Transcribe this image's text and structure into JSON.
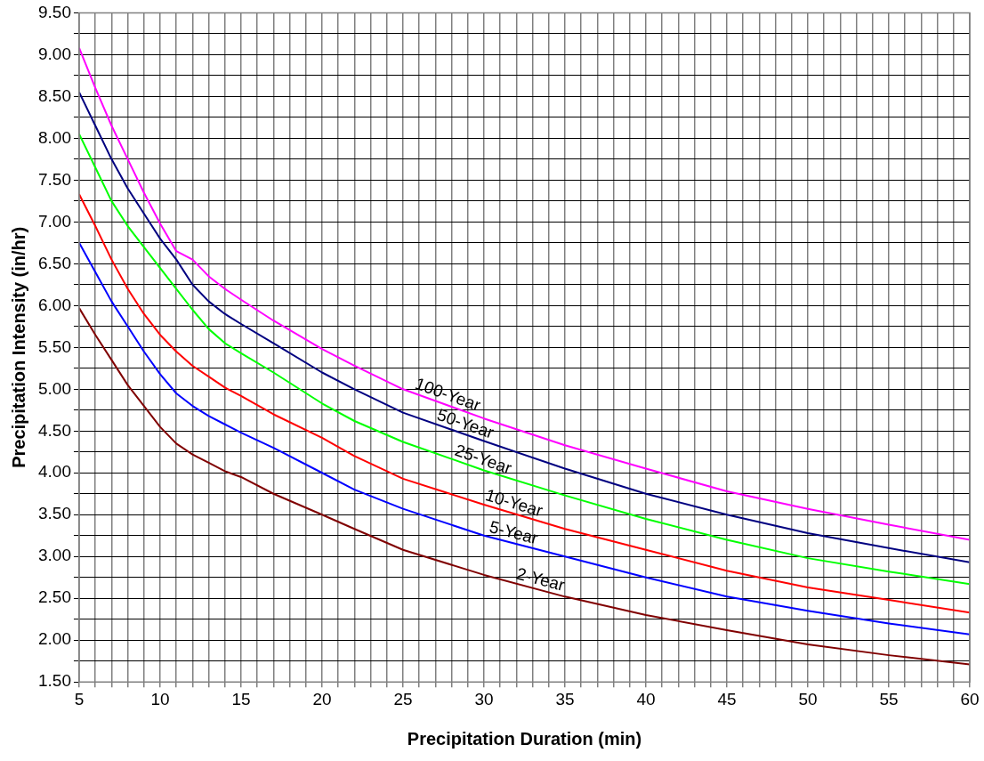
{
  "chart_data": {
    "type": "line",
    "xlabel": "Precipitation Duration (min)",
    "ylabel": "Precipitation Intensity (in/hr)",
    "x": [
      5,
      6,
      7,
      8,
      9,
      10,
      11,
      12,
      13,
      14,
      15,
      17,
      20,
      22,
      25,
      30,
      35,
      40,
      45,
      50,
      55,
      60
    ],
    "series": [
      {
        "name": "100-Year",
        "color": "#ff00ff",
        "values": [
          9.08,
          8.6,
          8.15,
          7.75,
          7.35,
          6.98,
          6.65,
          6.55,
          6.35,
          6.2,
          6.07,
          5.82,
          5.48,
          5.28,
          5.0,
          4.65,
          4.33,
          4.05,
          3.78,
          3.57,
          3.38,
          3.2
        ]
      },
      {
        "name": "50-Year",
        "color": "#000080",
        "values": [
          8.55,
          8.15,
          7.75,
          7.4,
          7.1,
          6.8,
          6.55,
          6.25,
          6.05,
          5.9,
          5.78,
          5.55,
          5.2,
          5.0,
          4.72,
          4.38,
          4.05,
          3.75,
          3.5,
          3.28,
          3.1,
          2.93
        ]
      },
      {
        "name": "25-Year",
        "color": "#00ff00",
        "values": [
          8.05,
          7.65,
          7.25,
          6.95,
          6.7,
          6.45,
          6.2,
          5.95,
          5.72,
          5.55,
          5.43,
          5.2,
          4.83,
          4.62,
          4.37,
          4.03,
          3.73,
          3.45,
          3.2,
          2.98,
          2.82,
          2.67
        ]
      },
      {
        "name": "10-Year",
        "color": "#ff0000",
        "values": [
          7.33,
          6.95,
          6.55,
          6.2,
          5.9,
          5.65,
          5.45,
          5.28,
          5.15,
          5.02,
          4.92,
          4.7,
          4.42,
          4.2,
          3.93,
          3.62,
          3.33,
          3.08,
          2.83,
          2.63,
          2.48,
          2.33
        ]
      },
      {
        "name": "5-Year",
        "color": "#0000ff",
        "values": [
          6.75,
          6.4,
          6.05,
          5.75,
          5.45,
          5.18,
          4.95,
          4.8,
          4.68,
          4.58,
          4.48,
          4.3,
          4.0,
          3.8,
          3.57,
          3.25,
          3.0,
          2.75,
          2.52,
          2.35,
          2.2,
          2.07
        ]
      },
      {
        "name": "2-Year",
        "color": "#800000",
        "values": [
          5.97,
          5.65,
          5.35,
          5.05,
          4.8,
          4.55,
          4.35,
          4.22,
          4.12,
          4.02,
          3.95,
          3.75,
          3.5,
          3.33,
          3.08,
          2.78,
          2.52,
          2.3,
          2.12,
          1.95,
          1.82,
          1.71
        ]
      }
    ],
    "xlim": [
      5,
      60
    ],
    "xticks": [
      5,
      {
        "value": 6,
        "label": null
      },
      {
        "value": 7,
        "label": null
      },
      {
        "value": 8,
        "label": null
      },
      {
        "value": 9,
        "label": null
      },
      10,
      {
        "value": 11,
        "label": null
      },
      {
        "value": 12,
        "label": null
      },
      {
        "value": 13,
        "label": null
      },
      {
        "value": 14,
        "label": null
      },
      15,
      {
        "value": 16,
        "label": null
      },
      {
        "value": 17,
        "label": null
      },
      {
        "value": 18,
        "label": null
      },
      {
        "value": 19,
        "label": null
      },
      20,
      {
        "value": 21,
        "label": null
      },
      {
        "value": 22,
        "label": null
      },
      {
        "value": 23,
        "label": null
      },
      {
        "value": 24,
        "label": null
      },
      25,
      {
        "value": 26,
        "label": null
      },
      {
        "value": 27,
        "label": null
      },
      {
        "value": 28,
        "label": null
      },
      {
        "value": 29,
        "label": null
      },
      30,
      {
        "value": 31,
        "label": null
      },
      {
        "value": 32,
        "label": null
      },
      {
        "value": 33,
        "label": null
      },
      {
        "value": 34,
        "label": null
      },
      35,
      {
        "value": 36,
        "label": null
      },
      {
        "value": 37,
        "label": null
      },
      {
        "value": 38,
        "label": null
      },
      {
        "value": 39,
        "label": null
      },
      40,
      {
        "value": 41,
        "label": null
      },
      {
        "value": 42,
        "label": null
      },
      {
        "value": 43,
        "label": null
      },
      {
        "value": 44,
        "label": null
      },
      45,
      {
        "value": 46,
        "label": null
      },
      {
        "value": 47,
        "label": null
      },
      {
        "value": 48,
        "label": null
      },
      {
        "value": 49,
        "label": null
      },
      50,
      {
        "value": 51,
        "label": null
      },
      {
        "value": 52,
        "label": null
      },
      {
        "value": 53,
        "label": null
      },
      {
        "value": 54,
        "label": null
      },
      55,
      {
        "value": 56,
        "label": null
      },
      {
        "value": 57,
        "label": null
      },
      {
        "value": 58,
        "label": null
      },
      {
        "value": 59,
        "label": null
      },
      60
    ],
    "ylim": [
      1.5,
      9.5
    ],
    "yticks": [
      {
        "value": 1.5,
        "label": "1.50"
      },
      {
        "value": 1.75,
        "label": null
      },
      {
        "value": 2,
        "label": "2.00"
      },
      {
        "value": 2.25,
        "label": null
      },
      {
        "value": 2.5,
        "label": "2.50"
      },
      {
        "value": 2.75,
        "label": null
      },
      {
        "value": 3,
        "label": "3.00"
      },
      {
        "value": 3.25,
        "label": null
      },
      {
        "value": 3.5,
        "label": "3.50"
      },
      {
        "value": 3.75,
        "label": null
      },
      {
        "value": 4,
        "label": "4.00"
      },
      {
        "value": 4.25,
        "label": null
      },
      {
        "value": 4.5,
        "label": "4.50"
      },
      {
        "value": 4.75,
        "label": null
      },
      {
        "value": 5,
        "label": "5.00"
      },
      {
        "value": 5.25,
        "label": null
      },
      {
        "value": 5.5,
        "label": "5.50"
      },
      {
        "value": 5.75,
        "label": null
      },
      {
        "value": 6,
        "label": "6.00"
      },
      {
        "value": 6.25,
        "label": null
      },
      {
        "value": 6.5,
        "label": "6.50"
      },
      {
        "value": 6.75,
        "label": null
      },
      {
        "value": 7,
        "label": "7.00"
      },
      {
        "value": 7.25,
        "label": null
      },
      {
        "value": 7.5,
        "label": "7.50"
      },
      {
        "value": 7.75,
        "label": null
      },
      {
        "value": 8,
        "label": "8.00"
      },
      {
        "value": 8.25,
        "label": null
      },
      {
        "value": 8.5,
        "label": "8.50"
      },
      {
        "value": 8.75,
        "label": null
      },
      {
        "value": 9,
        "label": "9.00"
      },
      {
        "value": 9.25,
        "label": null
      },
      {
        "value": 9.5,
        "label": "9.50"
      }
    ],
    "grid": true,
    "legend": false,
    "marker": "none",
    "line_style": "solid"
  }
}
